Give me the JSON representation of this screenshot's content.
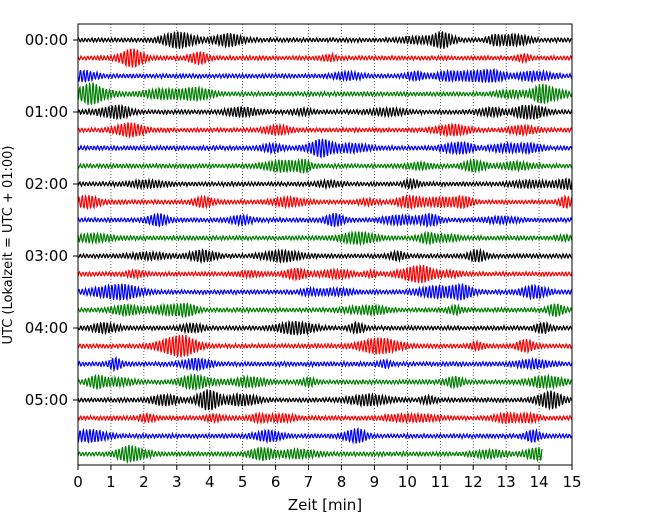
{
  "chart_data": {
    "type": "line",
    "subtype": "helicorder",
    "xlabel": "Zeit  [min]",
    "ylabel": "UTC (Lokalzeit = UTC + 01:00)",
    "xlim": [
      0,
      15
    ],
    "x_ticks": [
      "0",
      "1",
      "2",
      "3",
      "4",
      "5",
      "6",
      "7",
      "8",
      "9",
      "10",
      "11",
      "12",
      "13",
      "14",
      "15"
    ],
    "y_ticks": [
      "00:00",
      "01:00",
      "02:00",
      "03:00",
      "04:00",
      "05:00"
    ],
    "line_minutes": 15,
    "trace_count": 24,
    "last_trace_end_min": 14.1,
    "trace_colors": [
      "#000000",
      "#ff0000",
      "#0000ff",
      "#007f00"
    ],
    "grid": "vertical dotted at each minute"
  }
}
